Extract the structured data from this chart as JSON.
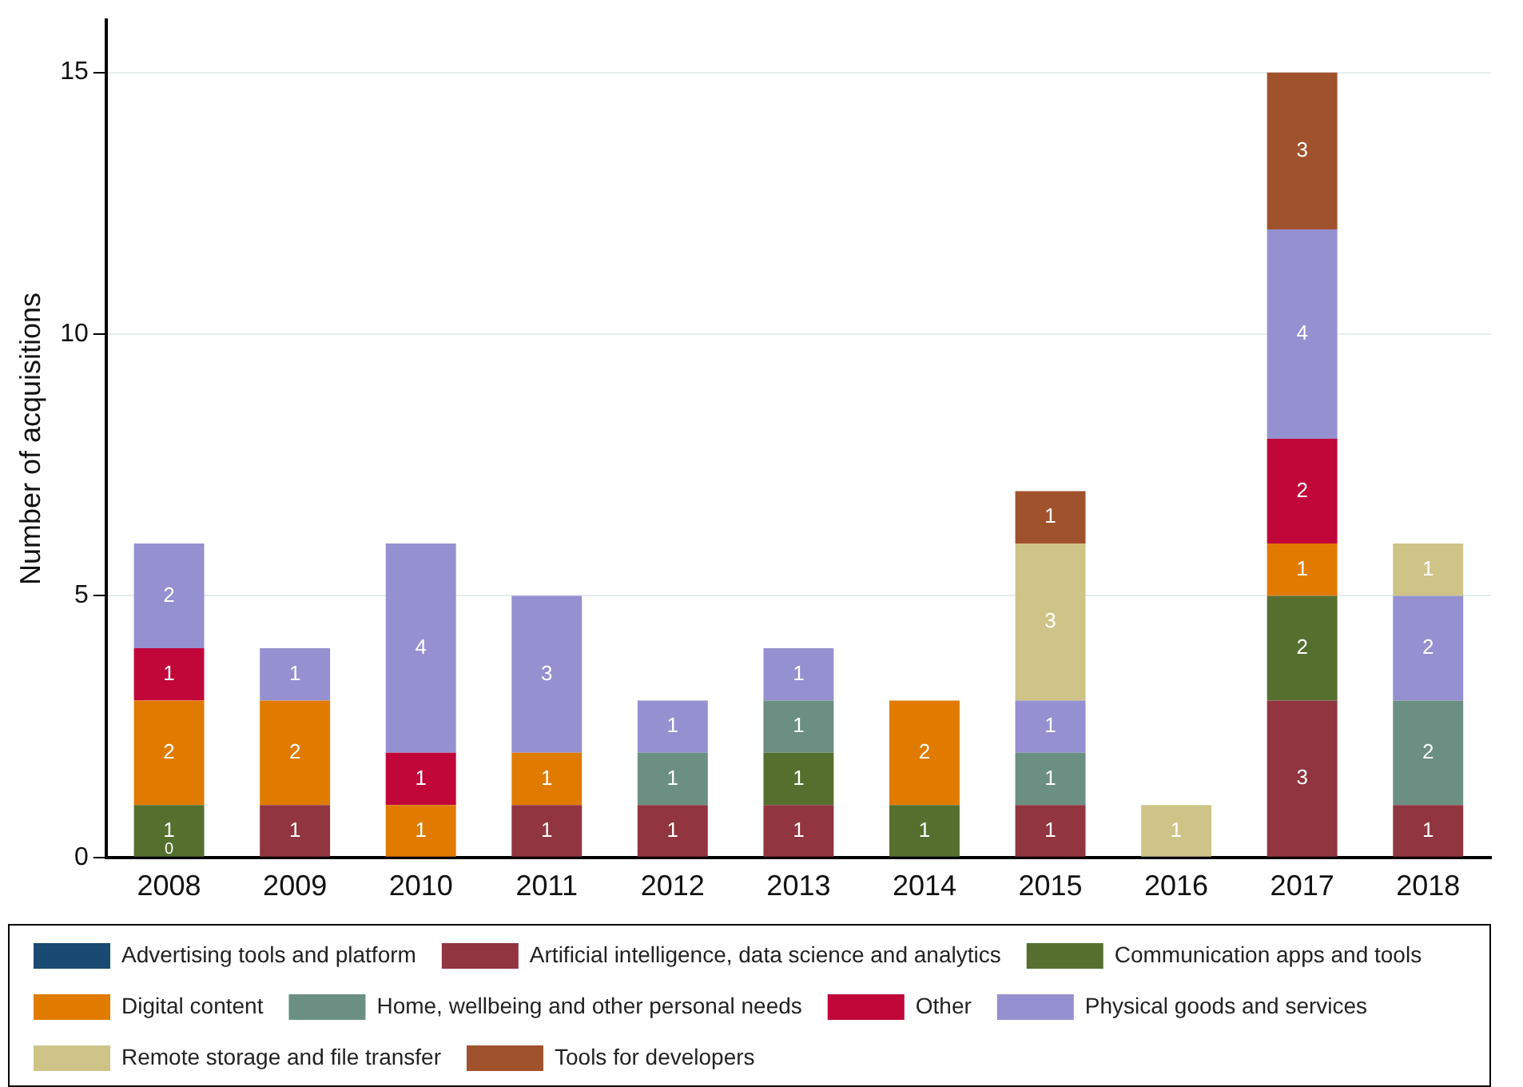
{
  "chart_data": {
    "type": "bar",
    "stacked": true,
    "ylabel": "Number of acquisitions",
    "categories": [
      "2008",
      "2009",
      "2010",
      "2011",
      "2012",
      "2013",
      "2014",
      "2015",
      "2016",
      "2017",
      "2018"
    ],
    "series": [
      {
        "name": "Advertising tools and platform",
        "color": "#1a4a72",
        "values": [
          null,
          null,
          null,
          null,
          null,
          null,
          null,
          null,
          null,
          null,
          null
        ]
      },
      {
        "name": "Artificial intelligence, data science and analytics",
        "color": "#913540",
        "values": [
          null,
          1,
          null,
          1,
          1,
          1,
          null,
          1,
          null,
          3,
          1
        ]
      },
      {
        "name": "Communication apps and tools",
        "color": "#556f2f",
        "values": [
          1,
          null,
          null,
          null,
          null,
          1,
          1,
          null,
          null,
          2,
          null
        ]
      },
      {
        "name": "Digital content",
        "color": "#e07b00",
        "values": [
          2,
          2,
          1,
          1,
          null,
          null,
          2,
          null,
          null,
          1,
          null
        ]
      },
      {
        "name": "Home, wellbeing and other personal needs",
        "color": "#6b8f83",
        "values": [
          null,
          null,
          null,
          null,
          1,
          1,
          null,
          1,
          null,
          null,
          2
        ]
      },
      {
        "name": "Other",
        "color": "#c1063a",
        "values": [
          1,
          null,
          1,
          null,
          null,
          null,
          null,
          null,
          null,
          2,
          null
        ]
      },
      {
        "name": "Physical goods and services",
        "color": "#9590d0",
        "values": [
          2,
          1,
          4,
          3,
          1,
          1,
          null,
          1,
          null,
          4,
          2
        ]
      },
      {
        "name": "Remote storage and file transfer",
        "color": "#cfc487",
        "values": [
          null,
          null,
          null,
          null,
          null,
          null,
          null,
          3,
          1,
          null,
          1
        ]
      },
      {
        "name": "Tools for developers",
        "color": "#a0522d",
        "values": [
          null,
          null,
          null,
          null,
          null,
          null,
          null,
          1,
          null,
          3,
          null
        ]
      }
    ],
    "ylim": [
      0,
      16
    ],
    "yticks": [
      0,
      5,
      10,
      15
    ],
    "grid": "y",
    "legend": "bottom",
    "data_labels": true,
    "annotations": [
      {
        "text": "0",
        "x": "2008",
        "y": 0
      }
    ]
  }
}
